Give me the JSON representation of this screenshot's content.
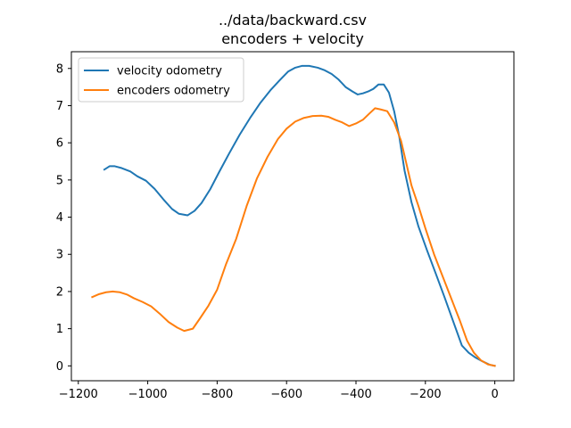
{
  "chart_data": {
    "type": "line",
    "title": "../data/backward.csv",
    "subtitle": "encoders + velocity",
    "xlabel": "",
    "ylabel": "",
    "xlim": [
      -1220,
      55
    ],
    "ylim": [
      -0.4,
      8.45
    ],
    "xticks": [
      -1200,
      -1000,
      -800,
      -600,
      -400,
      -200,
      0
    ],
    "xtick_labels": [
      "−1200",
      "−1000",
      "−800",
      "−600",
      "−400",
      "−200",
      "0"
    ],
    "yticks": [
      0,
      1,
      2,
      3,
      4,
      5,
      6,
      7,
      8
    ],
    "ytick_labels": [
      "0",
      "1",
      "2",
      "3",
      "4",
      "5",
      "6",
      "7",
      "8"
    ],
    "grid": false,
    "legend_position": "upper-left",
    "series": [
      {
        "name": "velocity odometry",
        "color": "#1f77b4",
        "x": [
          -1125,
          -1110,
          -1095,
          -1075,
          -1050,
          -1030,
          -1005,
          -980,
          -955,
          -930,
          -910,
          -885,
          -865,
          -845,
          -820,
          -795,
          -765,
          -735,
          -705,
          -675,
          -645,
          -620,
          -595,
          -575,
          -555,
          -535,
          -510,
          -490,
          -470,
          -450,
          -430,
          -410,
          -395,
          -380,
          -365,
          -350,
          -335,
          -320,
          -305,
          -290,
          -275,
          -260,
          -240,
          -220,
          -195,
          -170,
          -145,
          -120,
          -95,
          -75,
          -55,
          -35,
          -15,
          0
        ],
        "y": [
          5.28,
          5.37,
          5.37,
          5.32,
          5.23,
          5.1,
          4.98,
          4.76,
          4.48,
          4.22,
          4.09,
          4.05,
          4.17,
          4.38,
          4.75,
          5.2,
          5.72,
          6.22,
          6.67,
          7.08,
          7.43,
          7.68,
          7.92,
          8.02,
          8.07,
          8.07,
          8.02,
          7.95,
          7.85,
          7.7,
          7.5,
          7.38,
          7.3,
          7.33,
          7.38,
          7.45,
          7.57,
          7.57,
          7.35,
          6.85,
          6.15,
          5.25,
          4.4,
          3.75,
          3.1,
          2.48,
          1.85,
          1.2,
          0.55,
          0.35,
          0.22,
          0.12,
          0.03,
          0.0
        ]
      },
      {
        "name": "encoders odometry",
        "color": "#ff7f0e",
        "x": [
          -1160,
          -1140,
          -1120,
          -1100,
          -1080,
          -1060,
          -1040,
          -1015,
          -990,
          -965,
          -940,
          -915,
          -895,
          -870,
          -850,
          -825,
          -800,
          -775,
          -745,
          -715,
          -685,
          -655,
          -625,
          -600,
          -575,
          -550,
          -525,
          -500,
          -480,
          -460,
          -440,
          -420,
          -400,
          -380,
          -360,
          -345,
          -330,
          -310,
          -290,
          -270,
          -255,
          -240,
          -220,
          -200,
          -175,
          -150,
          -125,
          -100,
          -80,
          -60,
          -40,
          -20,
          0
        ],
        "y": [
          1.85,
          1.93,
          1.98,
          2.0,
          1.98,
          1.92,
          1.82,
          1.72,
          1.6,
          1.4,
          1.18,
          1.03,
          0.94,
          1.0,
          1.27,
          1.62,
          2.05,
          2.72,
          3.42,
          4.3,
          5.05,
          5.62,
          6.1,
          6.38,
          6.57,
          6.67,
          6.72,
          6.73,
          6.7,
          6.62,
          6.55,
          6.45,
          6.52,
          6.62,
          6.8,
          6.93,
          6.9,
          6.85,
          6.55,
          6.05,
          5.45,
          4.85,
          4.3,
          3.7,
          3.0,
          2.4,
          1.8,
          1.2,
          0.68,
          0.35,
          0.15,
          0.04,
          0.0
        ]
      }
    ]
  }
}
